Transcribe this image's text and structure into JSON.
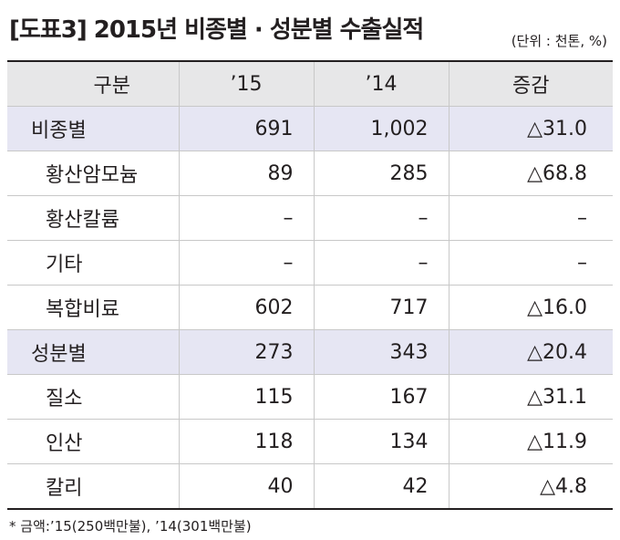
{
  "title": "[도표3] 2015년 비종별 · 성분별 수출실적",
  "unit": "(단위 : 천톤, %)",
  "table": {
    "headers": [
      "구분",
      "’15",
      "’14",
      "증감"
    ],
    "rows": [
      {
        "label": "비종별",
        "y15": "691",
        "y14": "1,002",
        "change": "△31.0"
      },
      {
        "label": "황산암모늄",
        "y15": "89",
        "y14": "285",
        "change": "△68.8"
      },
      {
        "label": "황산칼륨",
        "y15": "–",
        "y14": "–",
        "change": "–"
      },
      {
        "label": "기타",
        "y15": "–",
        "y14": "–",
        "change": "–"
      },
      {
        "label": "복합비료",
        "y15": "602",
        "y14": "717",
        "change": "△16.0"
      },
      {
        "label": "성분별",
        "y15": "273",
        "y14": "343",
        "change": "△20.4"
      },
      {
        "label": "질소",
        "y15": "115",
        "y14": "167",
        "change": "△31.1"
      },
      {
        "label": "인산",
        "y15": "118",
        "y14": "134",
        "change": "△11.9"
      },
      {
        "label": "칼리",
        "y15": "40",
        "y14": "42",
        "change": "△4.8"
      }
    ]
  },
  "footnote": "* 금액:’15(250백만불), ’14(301백만불)",
  "colors": {
    "header_bg": "#e7e7e8",
    "group_bg": "#e6e6f3",
    "text": "#231f20"
  }
}
